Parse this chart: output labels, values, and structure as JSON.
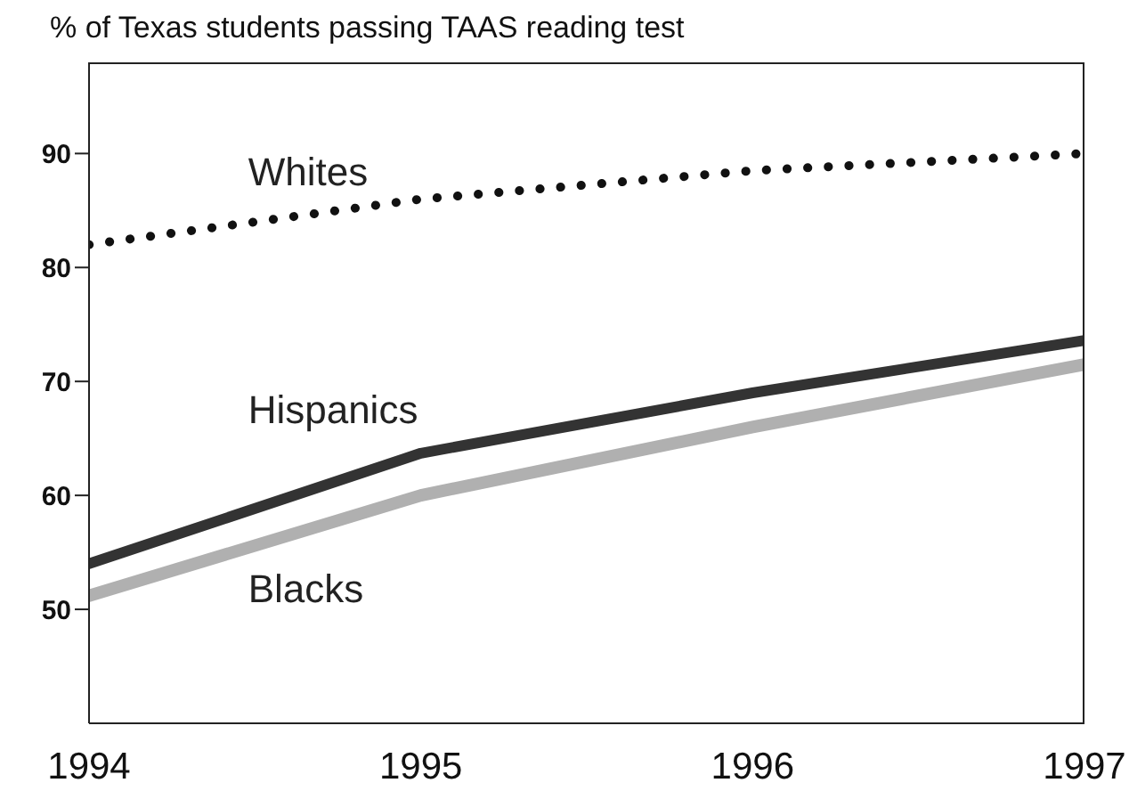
{
  "chart_data": {
    "type": "line",
    "title": "% of Texas students passing TAAS reading test",
    "x": [
      1994,
      1995,
      1996,
      1997
    ],
    "series": [
      {
        "name": "Whites",
        "color": "#111111",
        "values": [
          82,
          86,
          88.5,
          90
        ],
        "line_style": "dotted"
      },
      {
        "name": "Hispanics",
        "color": "#333333",
        "values": [
          54,
          63.7,
          69,
          73.6
        ],
        "line_style": "solid"
      },
      {
        "name": "Blacks",
        "color": "#b0b0b0",
        "values": [
          51.2,
          60,
          66,
          71.5
        ],
        "line_style": "solid"
      }
    ],
    "xlim": [
      1994,
      1997
    ],
    "xticks": [
      1994,
      1995,
      1996,
      1997
    ],
    "ylim": [
      40,
      98
    ],
    "yticks": [
      50,
      60,
      70,
      80,
      90
    ],
    "grid": false,
    "legend": false,
    "marker": "none"
  }
}
